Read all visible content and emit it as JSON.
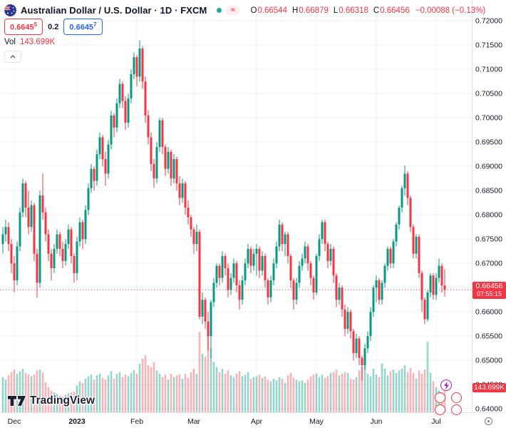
{
  "header": {
    "flag_icon": "australia-flag-icon",
    "title": "Australian Dollar / U.S. Dollar · 1D · FXCM",
    "market_status": {
      "dot_color": "#26a69a",
      "approx_symbol": "≈"
    },
    "ohlc_items": [
      {
        "label": "O",
        "value": "0.66544"
      },
      {
        "label": "H",
        "value": "0.66879"
      },
      {
        "label": "L",
        "value": "0.66318"
      },
      {
        "label": "C",
        "value": "0.66456"
      }
    ],
    "change_text": "−0.00088 (−0.13%)",
    "bid": {
      "main": "0.6645",
      "sup": "5"
    },
    "spread": "0.2",
    "ask": {
      "main": "0.6645",
      "sup": "7"
    },
    "vol": {
      "label": "Vol",
      "value": "143.699K"
    }
  },
  "price_scale": {
    "ticks": [
      "0.72000",
      "0.71500",
      "0.71000",
      "0.70500",
      "0.70000",
      "0.69500",
      "0.69000",
      "0.68500",
      "0.68000",
      "0.67500",
      "0.67000",
      "0.66500",
      "0.66000",
      "0.65500",
      "0.65000",
      "0.64500",
      "0.64000"
    ],
    "last_price_badge": {
      "value": "0.66456",
      "countdown": "07:55:15",
      "bg": "#f23645"
    },
    "volume_badge": {
      "value": "143.699K",
      "bg": "#f23645"
    }
  },
  "time_scale": {
    "labels": [
      {
        "text": "Dec",
        "index": 4,
        "bold": false
      },
      {
        "text": "2023",
        "index": 26,
        "bold": true
      },
      {
        "text": "Feb",
        "index": 47,
        "bold": false
      },
      {
        "text": "Mar",
        "index": 67,
        "bold": false
      },
      {
        "text": "Apr",
        "index": 89,
        "bold": false
      },
      {
        "text": "May",
        "index": 110,
        "bold": false
      },
      {
        "text": "Jun",
        "index": 131,
        "bold": false
      },
      {
        "text": "Jul",
        "index": 152,
        "bold": false
      }
    ]
  },
  "watermark": {
    "text": "TradingView"
  },
  "event_markers": {
    "icons": [
      "lightning-event",
      "australia-flag-event",
      "australia-flag-event",
      "us-flag-event",
      "australia-flag-event"
    ]
  },
  "colors": {
    "up": "#089981",
    "down": "#f23645",
    "vol_up": "rgba(8,153,129,0.42)",
    "vol_down": "rgba(242,54,69,0.38)",
    "grid": "#eef1f7",
    "axis_text": "#131722",
    "border": "#e0e3eb",
    "accent_blue": "#2962ff",
    "event_purple": "#9c27b0"
  },
  "chart_data": {
    "type": "candlestick",
    "symbol": "AUD/USD",
    "timeframe": "1D",
    "exchange": "FXCM",
    "y_range": [
      0.6393,
      0.7243
    ],
    "y_tick_step": 0.005,
    "last_price": 0.66456,
    "last_volume_k": 143.699,
    "legend_note": "candles = [open, high, low, close, volume_k]",
    "candles": [
      [
        0.674,
        0.6775,
        0.672,
        0.676,
        210
      ],
      [
        0.676,
        0.679,
        0.6745,
        0.6775,
        195
      ],
      [
        0.6775,
        0.6785,
        0.6725,
        0.674,
        220
      ],
      [
        0.674,
        0.675,
        0.668,
        0.67,
        240
      ],
      [
        0.67,
        0.6715,
        0.664,
        0.6665,
        255
      ],
      [
        0.6665,
        0.6745,
        0.6655,
        0.6735,
        230
      ],
      [
        0.6735,
        0.6815,
        0.6725,
        0.6805,
        245
      ],
      [
        0.6805,
        0.6875,
        0.6795,
        0.6865,
        260
      ],
      [
        0.6865,
        0.687,
        0.6795,
        0.6815,
        235
      ],
      [
        0.6815,
        0.685,
        0.676,
        0.6775,
        225
      ],
      [
        0.6775,
        0.683,
        0.6765,
        0.682,
        215
      ],
      [
        0.682,
        0.6825,
        0.6705,
        0.672,
        225
      ],
      [
        0.672,
        0.673,
        0.6629,
        0.666,
        250
      ],
      [
        0.666,
        0.685,
        0.665,
        0.684,
        255
      ],
      [
        0.684,
        0.6885,
        0.679,
        0.6805,
        240
      ],
      [
        0.6805,
        0.6815,
        0.6745,
        0.676,
        180
      ],
      [
        0.676,
        0.677,
        0.6705,
        0.672,
        150
      ],
      [
        0.672,
        0.673,
        0.6665,
        0.669,
        130
      ],
      [
        0.669,
        0.674,
        0.668,
        0.673,
        120
      ],
      [
        0.673,
        0.677,
        0.672,
        0.676,
        110
      ],
      [
        0.676,
        0.6765,
        0.6715,
        0.673,
        100
      ],
      [
        0.673,
        0.6745,
        0.669,
        0.6705,
        95
      ],
      [
        0.6705,
        0.675,
        0.6695,
        0.674,
        105
      ],
      [
        0.674,
        0.678,
        0.673,
        0.677,
        115
      ],
      [
        0.677,
        0.6775,
        0.67,
        0.6715,
        120
      ],
      [
        0.6715,
        0.672,
        0.666,
        0.668,
        125
      ],
      [
        0.668,
        0.6755,
        0.6665,
        0.6745,
        160
      ],
      [
        0.6745,
        0.6795,
        0.6735,
        0.6785,
        185
      ],
      [
        0.6785,
        0.679,
        0.673,
        0.675,
        175
      ],
      [
        0.675,
        0.682,
        0.674,
        0.681,
        200
      ],
      [
        0.681,
        0.6865,
        0.68,
        0.6855,
        215
      ],
      [
        0.6855,
        0.6905,
        0.6845,
        0.6895,
        225
      ],
      [
        0.6895,
        0.69,
        0.685,
        0.687,
        195
      ],
      [
        0.687,
        0.6935,
        0.686,
        0.6925,
        220
      ],
      [
        0.6925,
        0.697,
        0.6915,
        0.696,
        230
      ],
      [
        0.696,
        0.6965,
        0.69,
        0.6915,
        205
      ],
      [
        0.6915,
        0.693,
        0.686,
        0.6885,
        195
      ],
      [
        0.6885,
        0.6955,
        0.6875,
        0.6945,
        220
      ],
      [
        0.6945,
        0.7015,
        0.6935,
        0.7005,
        245
      ],
      [
        0.7005,
        0.701,
        0.696,
        0.698,
        200
      ],
      [
        0.698,
        0.704,
        0.697,
        0.703,
        230
      ],
      [
        0.703,
        0.708,
        0.702,
        0.707,
        240
      ],
      [
        0.707,
        0.7075,
        0.702,
        0.7035,
        210
      ],
      [
        0.7035,
        0.7045,
        0.6975,
        0.699,
        225
      ],
      [
        0.699,
        0.705,
        0.698,
        0.704,
        215
      ],
      [
        0.704,
        0.71,
        0.703,
        0.709,
        235
      ],
      [
        0.709,
        0.7135,
        0.708,
        0.7125,
        250
      ],
      [
        0.7125,
        0.713,
        0.7065,
        0.7085,
        230
      ],
      [
        0.7085,
        0.716,
        0.7075,
        0.7143,
        290
      ],
      [
        0.7143,
        0.7148,
        0.706,
        0.7075,
        320
      ],
      [
        0.7075,
        0.7085,
        0.699,
        0.7005,
        340
      ],
      [
        0.7005,
        0.7015,
        0.6945,
        0.696,
        280
      ],
      [
        0.696,
        0.697,
        0.689,
        0.6905,
        270
      ],
      [
        0.6905,
        0.6915,
        0.6856,
        0.6875,
        300
      ],
      [
        0.6875,
        0.695,
        0.6865,
        0.694,
        250
      ],
      [
        0.694,
        0.7,
        0.693,
        0.6995,
        230
      ],
      [
        0.6995,
        0.7,
        0.6925,
        0.694,
        210
      ],
      [
        0.694,
        0.6945,
        0.688,
        0.6895,
        225
      ],
      [
        0.6895,
        0.694,
        0.6885,
        0.693,
        195
      ],
      [
        0.693,
        0.6935,
        0.686,
        0.6875,
        230
      ],
      [
        0.6875,
        0.6925,
        0.6865,
        0.6915,
        210
      ],
      [
        0.6915,
        0.692,
        0.685,
        0.6865,
        220
      ],
      [
        0.6865,
        0.688,
        0.682,
        0.6835,
        225
      ],
      [
        0.6835,
        0.6875,
        0.6825,
        0.6865,
        200
      ],
      [
        0.6865,
        0.687,
        0.68,
        0.6815,
        230
      ],
      [
        0.6815,
        0.683,
        0.678,
        0.6795,
        205
      ],
      [
        0.6795,
        0.68,
        0.6755,
        0.677,
        240
      ],
      [
        0.677,
        0.6775,
        0.672,
        0.674,
        260
      ],
      [
        0.674,
        0.678,
        0.6725,
        0.6765,
        230
      ],
      [
        0.6765,
        0.677,
        0.6585,
        0.659,
        480
      ],
      [
        0.659,
        0.664,
        0.6575,
        0.6625,
        350
      ],
      [
        0.6625,
        0.663,
        0.6565,
        0.658,
        330
      ],
      [
        0.658,
        0.66,
        0.652,
        0.655,
        490
      ],
      [
        0.655,
        0.6625,
        0.6505,
        0.662,
        380
      ],
      [
        0.662,
        0.667,
        0.661,
        0.666,
        300
      ],
      [
        0.666,
        0.67,
        0.665,
        0.6695,
        270
      ],
      [
        0.6695,
        0.67,
        0.6655,
        0.667,
        240
      ],
      [
        0.667,
        0.6725,
        0.666,
        0.6715,
        260
      ],
      [
        0.6715,
        0.672,
        0.6675,
        0.669,
        230
      ],
      [
        0.669,
        0.67,
        0.663,
        0.6645,
        250
      ],
      [
        0.6645,
        0.668,
        0.6635,
        0.667,
        220
      ],
      [
        0.667,
        0.671,
        0.666,
        0.67,
        210
      ],
      [
        0.67,
        0.6705,
        0.664,
        0.6655,
        230
      ],
      [
        0.6655,
        0.6665,
        0.6605,
        0.6625,
        245
      ],
      [
        0.6625,
        0.6675,
        0.6615,
        0.6665,
        215
      ],
      [
        0.6665,
        0.671,
        0.6655,
        0.67,
        225
      ],
      [
        0.67,
        0.674,
        0.669,
        0.673,
        240
      ],
      [
        0.673,
        0.6735,
        0.668,
        0.6695,
        200
      ],
      [
        0.6695,
        0.673,
        0.6685,
        0.672,
        210
      ],
      [
        0.672,
        0.674,
        0.6675,
        0.673,
        215
      ],
      [
        0.673,
        0.6735,
        0.667,
        0.6685,
        225
      ],
      [
        0.6685,
        0.6725,
        0.6675,
        0.6715,
        205
      ],
      [
        0.6715,
        0.672,
        0.665,
        0.6665,
        215
      ],
      [
        0.6665,
        0.667,
        0.6615,
        0.663,
        195
      ],
      [
        0.663,
        0.6675,
        0.662,
        0.6665,
        185
      ],
      [
        0.6665,
        0.671,
        0.6655,
        0.67,
        200
      ],
      [
        0.67,
        0.6745,
        0.669,
        0.6735,
        190
      ],
      [
        0.6735,
        0.679,
        0.6725,
        0.678,
        210
      ],
      [
        0.678,
        0.6785,
        0.6725,
        0.674,
        200
      ],
      [
        0.674,
        0.6765,
        0.6715,
        0.676,
        175
      ],
      [
        0.676,
        0.6765,
        0.67,
        0.6715,
        220
      ],
      [
        0.6715,
        0.672,
        0.665,
        0.6665,
        235
      ],
      [
        0.6665,
        0.667,
        0.6605,
        0.6625,
        205
      ],
      [
        0.6625,
        0.667,
        0.6615,
        0.666,
        195
      ],
      [
        0.666,
        0.6705,
        0.665,
        0.6695,
        185
      ],
      [
        0.6695,
        0.672,
        0.6685,
        0.671,
        190
      ],
      [
        0.671,
        0.6745,
        0.67,
        0.6735,
        175
      ],
      [
        0.6735,
        0.674,
        0.6685,
        0.67,
        195
      ],
      [
        0.67,
        0.6705,
        0.6655,
        0.667,
        215
      ],
      [
        0.667,
        0.6675,
        0.6625,
        0.664,
        225
      ],
      [
        0.664,
        0.672,
        0.6635,
        0.6715,
        230
      ],
      [
        0.6715,
        0.676,
        0.6705,
        0.675,
        210
      ],
      [
        0.675,
        0.679,
        0.674,
        0.6785,
        225
      ],
      [
        0.6785,
        0.679,
        0.6725,
        0.674,
        205
      ],
      [
        0.674,
        0.6745,
        0.669,
        0.6705,
        215
      ],
      [
        0.6705,
        0.674,
        0.6695,
        0.673,
        235
      ],
      [
        0.673,
        0.6735,
        0.666,
        0.6675,
        240
      ],
      [
        0.6675,
        0.668,
        0.661,
        0.6625,
        255
      ],
      [
        0.6625,
        0.666,
        0.6615,
        0.665,
        220
      ],
      [
        0.665,
        0.6655,
        0.659,
        0.6605,
        230
      ],
      [
        0.6605,
        0.6615,
        0.655,
        0.6565,
        240
      ],
      [
        0.6565,
        0.661,
        0.6555,
        0.66,
        235
      ],
      [
        0.66,
        0.6605,
        0.6545,
        0.656,
        200
      ],
      [
        0.656,
        0.6565,
        0.65,
        0.6515,
        195
      ],
      [
        0.6515,
        0.6555,
        0.6505,
        0.6545,
        210
      ],
      [
        0.6545,
        0.655,
        0.649,
        0.6505,
        250
      ],
      [
        0.6505,
        0.651,
        0.6458,
        0.649,
        270
      ],
      [
        0.649,
        0.6535,
        0.648,
        0.6525,
        280
      ],
      [
        0.6525,
        0.656,
        0.6515,
        0.655,
        230
      ],
      [
        0.655,
        0.661,
        0.654,
        0.66,
        215
      ],
      [
        0.66,
        0.6655,
        0.659,
        0.665,
        260
      ],
      [
        0.665,
        0.6675,
        0.662,
        0.6665,
        225
      ],
      [
        0.6665,
        0.667,
        0.6615,
        0.6625,
        210
      ],
      [
        0.6625,
        0.6665,
        0.6615,
        0.666,
        290
      ],
      [
        0.666,
        0.67,
        0.665,
        0.6695,
        260
      ],
      [
        0.6695,
        0.6735,
        0.6685,
        0.673,
        220
      ],
      [
        0.673,
        0.6735,
        0.669,
        0.67,
        245
      ],
      [
        0.67,
        0.675,
        0.669,
        0.6745,
        255
      ],
      [
        0.6745,
        0.6785,
        0.6735,
        0.678,
        235
      ],
      [
        0.678,
        0.682,
        0.677,
        0.6815,
        250
      ],
      [
        0.6815,
        0.686,
        0.6805,
        0.6855,
        260
      ],
      [
        0.6855,
        0.6902,
        0.684,
        0.6885,
        280
      ],
      [
        0.6885,
        0.689,
        0.682,
        0.6835,
        240
      ],
      [
        0.6835,
        0.684,
        0.6765,
        0.6775,
        265
      ],
      [
        0.6775,
        0.678,
        0.671,
        0.672,
        235
      ],
      [
        0.672,
        0.676,
        0.671,
        0.6755,
        200
      ],
      [
        0.6755,
        0.676,
        0.667,
        0.668,
        250
      ],
      [
        0.668,
        0.6685,
        0.66,
        0.6625,
        230
      ],
      [
        0.6625,
        0.663,
        0.6575,
        0.6585,
        255
      ],
      [
        0.6585,
        0.6645,
        0.658,
        0.664,
        420
      ],
      [
        0.664,
        0.668,
        0.663,
        0.6675,
        235
      ],
      [
        0.6675,
        0.668,
        0.6625,
        0.6635,
        185
      ],
      [
        0.6635,
        0.668,
        0.6625,
        0.667,
        150
      ],
      [
        0.667,
        0.671,
        0.666,
        0.6695,
        130
      ],
      [
        0.6695,
        0.67,
        0.664,
        0.66544,
        120
      ],
      [
        0.66544,
        0.66879,
        0.66318,
        0.66456,
        143.699
      ]
    ]
  }
}
